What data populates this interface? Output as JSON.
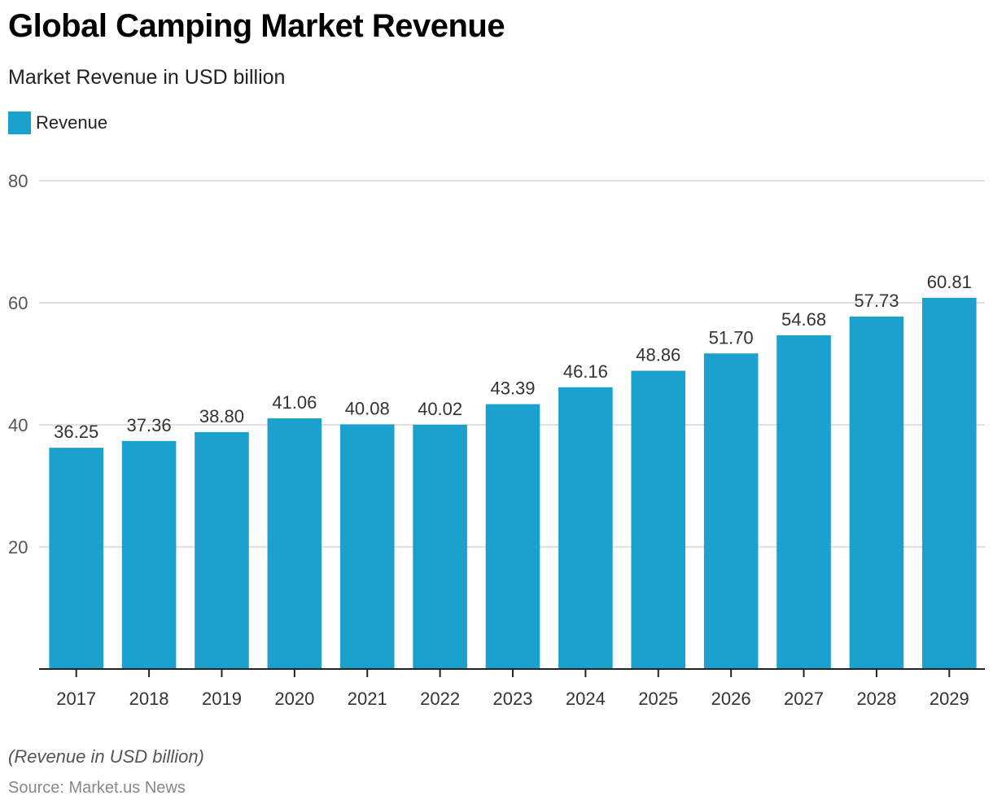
{
  "header": {
    "title": "Global Camping Market Revenue",
    "subtitle": "Market Revenue in USD billion"
  },
  "footer": {
    "note": "(Revenue in USD billion)",
    "source": "Source: Market.us News"
  },
  "colors": {
    "bar": "#1aa1cd",
    "grid": "#d6d6d6",
    "axis": "#222222",
    "tick_label": "#555555",
    "data_label": "#333333"
  },
  "chart_data": {
    "type": "bar",
    "title": "Global Camping Market Revenue",
    "subtitle": "Market Revenue in USD billion",
    "xlabel": "",
    "ylabel": "",
    "categories": [
      "2017",
      "2018",
      "2019",
      "2020",
      "2021",
      "2022",
      "2023",
      "2024",
      "2025",
      "2026",
      "2027",
      "2028",
      "2029"
    ],
    "series": [
      {
        "name": "Revenue",
        "values": [
          36.25,
          37.36,
          38.8,
          41.06,
          40.08,
          40.02,
          43.39,
          46.16,
          48.86,
          51.7,
          54.68,
          57.73,
          60.81
        ]
      }
    ],
    "data_labels": [
      "36.25",
      "37.36",
      "38.80",
      "41.06",
      "40.08",
      "40.02",
      "43.39",
      "46.16",
      "48.86",
      "51.70",
      "54.68",
      "57.73",
      "60.81"
    ],
    "ylim": [
      0,
      80
    ],
    "yticks": [
      20,
      40,
      60,
      80
    ],
    "grid": true,
    "legend": {
      "entries": [
        "Revenue"
      ],
      "placement": "top-left"
    }
  }
}
